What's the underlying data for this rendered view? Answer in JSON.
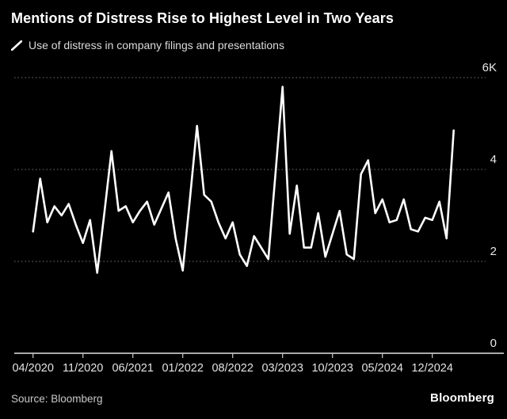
{
  "header": {
    "title": "Mentions of Distress Rise to Highest Level in Two Years",
    "legend_label": "Use of distress in company filings and presentations"
  },
  "footer": {
    "source": "Source: Bloomberg",
    "logo_text": "Bloomberg"
  },
  "colors": {
    "background": "#000000",
    "line": "#ffffff",
    "grid": "#5e5e5e",
    "axis_text": "#e4e4e4"
  },
  "chart_data": {
    "type": "line",
    "title": "Mentions of Distress Rise to Highest Level in Two Years",
    "series_name": "Use of distress in company filings and presentations",
    "unit": "thousands of mentions",
    "grid": "horizontal dotted",
    "legend_position": "top-left",
    "ylim": [
      0,
      6
    ],
    "y_ticks": [
      {
        "label": "6K",
        "value": 6
      },
      {
        "label": "4",
        "value": 4
      },
      {
        "label": "2",
        "value": 2
      },
      {
        "label": "0",
        "value": 0
      }
    ],
    "x_tick_labels": [
      "04/2020",
      "11/2020",
      "06/2021",
      "01/2022",
      "08/2022",
      "03/2023",
      "10/2023",
      "05/2024",
      "12/2024"
    ],
    "x_tick_indices": [
      0,
      7,
      14,
      21,
      28,
      35,
      42,
      49,
      56
    ],
    "x": [
      "04/2020",
      "05/2020",
      "06/2020",
      "07/2020",
      "08/2020",
      "09/2020",
      "10/2020",
      "11/2020",
      "12/2020",
      "01/2021",
      "02/2021",
      "03/2021",
      "04/2021",
      "05/2021",
      "06/2021",
      "07/2021",
      "08/2021",
      "09/2021",
      "10/2021",
      "11/2021",
      "12/2021",
      "01/2022",
      "02/2022",
      "03/2022",
      "04/2022",
      "05/2022",
      "06/2022",
      "07/2022",
      "08/2022",
      "09/2022",
      "10/2022",
      "11/2022",
      "12/2022",
      "01/2023",
      "02/2023",
      "03/2023",
      "04/2023",
      "05/2023",
      "06/2023",
      "07/2023",
      "08/2023",
      "09/2023",
      "10/2023",
      "11/2023",
      "12/2023",
      "01/2024",
      "02/2024",
      "03/2024",
      "04/2024",
      "05/2024",
      "06/2024",
      "07/2024",
      "08/2024",
      "09/2024",
      "10/2024",
      "11/2024",
      "12/2024",
      "01/2025",
      "02/2025",
      "03/2025"
    ],
    "values": [
      2.65,
      3.8,
      2.85,
      3.2,
      3.0,
      3.25,
      2.8,
      2.4,
      2.9,
      1.75,
      3.05,
      4.4,
      3.1,
      3.2,
      2.85,
      3.1,
      3.3,
      2.8,
      3.15,
      3.5,
      2.5,
      1.8,
      3.35,
      4.95,
      3.45,
      3.3,
      2.85,
      2.5,
      2.85,
      2.15,
      1.9,
      2.55,
      2.3,
      2.05,
      3.9,
      5.8,
      2.6,
      3.65,
      2.3,
      2.3,
      3.05,
      2.1,
      2.6,
      3.1,
      2.15,
      2.05,
      3.9,
      4.2,
      3.05,
      3.35,
      2.85,
      2.9,
      3.35,
      2.7,
      2.65,
      2.95,
      2.9,
      3.3,
      2.5,
      4.85
    ]
  }
}
